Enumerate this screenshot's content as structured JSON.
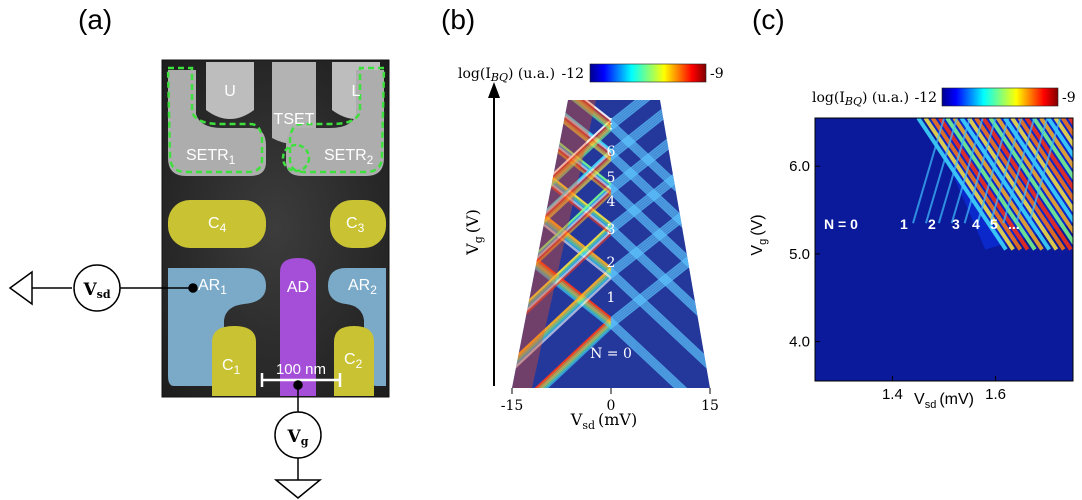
{
  "panels": {
    "a": "(a)",
    "b": "(b)",
    "c": "(c)"
  },
  "device": {
    "gates": {
      "U": "U",
      "L": "L",
      "TSET": "TSET",
      "SETR1_main": "SETR",
      "SETR1_sub": "1",
      "SETR2_main": "SETR",
      "SETR2_sub": "2",
      "C4_main": "C",
      "C4_sub": "4",
      "C3_main": "C",
      "C3_sub": "3",
      "AR1_main": "AR",
      "AR1_sub": "1",
      "AD": "AD",
      "AR2_main": "AR",
      "AR2_sub": "2",
      "C1_main": "C",
      "C1_sub": "1",
      "C2_main": "C",
      "C2_sub": "2"
    },
    "scalebar": "100 nm",
    "source_symbol_main": "V",
    "source_symbol_sub": "sd",
    "gate_symbol_main": "V",
    "gate_symbol_sub": "g"
  },
  "colorbar_b": {
    "label_main": "log(I",
    "label_sub": "BQ",
    "label_rest": ") (u.a.)",
    "min": "-12",
    "max": "-9"
  },
  "colorbar_c": {
    "label_main": "log(I",
    "label_sub": "BQ",
    "label_rest": ") (u.a.)",
    "min": "-12",
    "max": "-9"
  },
  "chart_data": [
    {
      "type": "heatmap",
      "panel": "b",
      "xlabel_main": "V",
      "xlabel_sub": "sd",
      "xlabel_unit": "(mV)",
      "ylabel_main": "V",
      "ylabel_sub": "g",
      "ylabel_unit": "(V)",
      "x_ticks": [
        "-15",
        "0",
        "15"
      ],
      "xlim": [
        -15,
        15
      ],
      "diamond_labels": [
        "N = 0",
        "1",
        "2",
        "3",
        "4",
        "5",
        "6",
        "⋮"
      ],
      "colormap": "jet"
    },
    {
      "type": "heatmap",
      "panel": "c",
      "xlabel_main": "V",
      "xlabel_sub": "sd",
      "xlabel_unit": "(mV)",
      "ylabel_main": "V",
      "ylabel_sub": "g",
      "ylabel_unit": "(V)",
      "x_ticks": [
        1.4,
        1.6
      ],
      "y_ticks": [
        4.0,
        5.0,
        6.0
      ],
      "x_tick_labels": [
        "1.4",
        "1.6"
      ],
      "y_tick_labels": [
        "4.0",
        "5.0",
        "6.0"
      ],
      "xlim": [
        1.25,
        1.75
      ],
      "ylim": [
        3.55,
        6.55
      ],
      "electron_labels": [
        "N = 0",
        "1",
        "2",
        "3",
        "4",
        "5",
        "..."
      ],
      "colormap": "jet"
    }
  ]
}
